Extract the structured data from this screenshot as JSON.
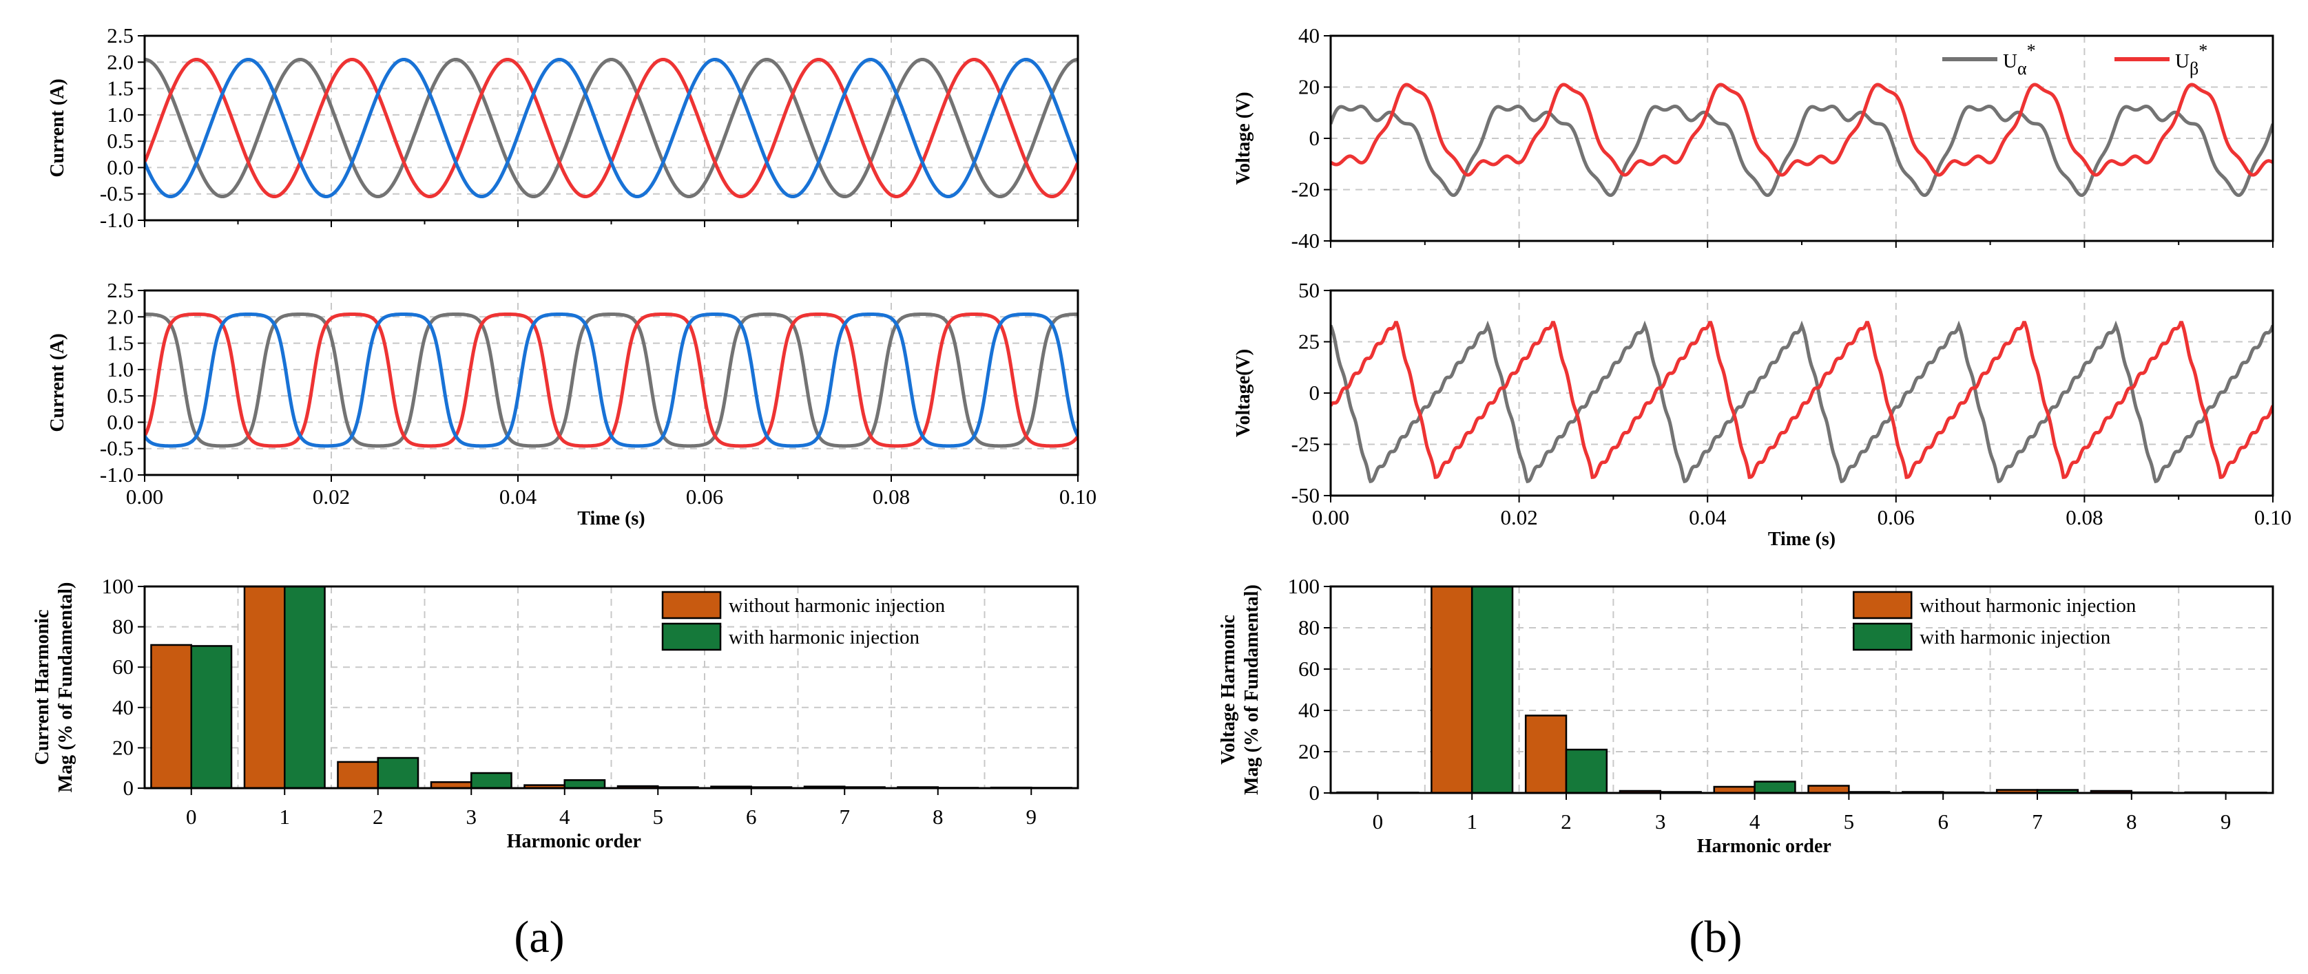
{
  "figure": {
    "panel_a_label": "(a)",
    "panel_b_label": "(b)"
  },
  "chart_data": [
    {
      "id": "a1",
      "type": "line",
      "title": "",
      "xlabel": "",
      "ylabel": "Current (A)",
      "xlim": [
        0,
        0.1
      ],
      "ylim": [
        -1.0,
        2.5
      ],
      "xticks": [
        0,
        0.02,
        0.04,
        0.06,
        0.08,
        0.1
      ],
      "xtick_labels": [
        "",
        "",
        "",
        "",
        "",
        ""
      ],
      "yticks": [
        -1.0,
        -0.5,
        0.0,
        0.5,
        1.0,
        1.5,
        2.0,
        2.5
      ],
      "ytick_labels": [
        "-1.0",
        "-0.5",
        "0.0",
        "0.5",
        "1.0",
        "1.5",
        "2.0",
        "2.5"
      ],
      "grid": true,
      "series": [
        {
          "name": "phase-gray",
          "color": "#737373",
          "model": "sine",
          "offset": 0.75,
          "amplitude": 1.3,
          "freq_hz": 60,
          "phase_deg": 0
        },
        {
          "name": "phase-red",
          "color": "#ee3333",
          "model": "sine",
          "offset": 0.75,
          "amplitude": 1.3,
          "freq_hz": 60,
          "phase_deg": 120
        },
        {
          "name": "phase-blue",
          "color": "#1872d6",
          "model": "sine",
          "offset": 0.75,
          "amplitude": 1.3,
          "freq_hz": 60,
          "phase_deg": 240
        }
      ]
    },
    {
      "id": "a2",
      "type": "line",
      "title": "",
      "xlabel": "Time (s)",
      "ylabel": "Current (A)",
      "xlim": [
        0,
        0.1
      ],
      "ylim": [
        -1.0,
        2.5
      ],
      "xticks": [
        0,
        0.02,
        0.04,
        0.06,
        0.08,
        0.1
      ],
      "xtick_labels": [
        "0.00",
        "0.02",
        "0.04",
        "0.06",
        "0.08",
        "0.10"
      ],
      "yticks": [
        -1.0,
        -0.5,
        0.0,
        0.5,
        1.0,
        1.5,
        2.0,
        2.5
      ],
      "ytick_labels": [
        "-1.0",
        "-0.5",
        "0.0",
        "0.5",
        "1.0",
        "1.5",
        "2.0",
        "2.5"
      ],
      "grid": true,
      "series": [
        {
          "name": "phase-gray",
          "color": "#737373",
          "model": "flat_top",
          "offset": 0.8,
          "amplitude": 1.25,
          "freq_hz": 60,
          "phase_deg": 0
        },
        {
          "name": "phase-red",
          "color": "#ee3333",
          "model": "flat_top",
          "offset": 0.8,
          "amplitude": 1.25,
          "freq_hz": 60,
          "phase_deg": 120
        },
        {
          "name": "phase-blue",
          "color": "#1872d6",
          "model": "flat_top",
          "offset": 0.8,
          "amplitude": 1.25,
          "freq_hz": 60,
          "phase_deg": 240
        }
      ]
    },
    {
      "id": "a3",
      "type": "bar",
      "title": "",
      "xlabel": "Harmonic order",
      "ylabel": "Current Harmonic Mag (% of Fundamental)",
      "ylabel_lines": [
        "Current Harmonic",
        "Mag (% of Fundamental)"
      ],
      "categories": [
        "0",
        "1",
        "2",
        "3",
        "4",
        "5",
        "6",
        "7",
        "8",
        "9"
      ],
      "ylim": [
        0,
        100
      ],
      "yticks": [
        0,
        20,
        40,
        60,
        80,
        100
      ],
      "ytick_labels": [
        "0",
        "20",
        "40",
        "60",
        "80",
        "100"
      ],
      "grid": true,
      "legend": "top-right",
      "series": [
        {
          "name": "without harmonic injection",
          "color": "#c85a10",
          "values": [
            71,
            100,
            13,
            3,
            1.5,
            1,
            0.8,
            0.8,
            0.5,
            0.3
          ]
        },
        {
          "name": "with harmonic injection",
          "color": "#15793a",
          "values": [
            70.5,
            100,
            15,
            7.5,
            4,
            0.5,
            0.5,
            0.5,
            0.2,
            0.2
          ]
        }
      ]
    },
    {
      "id": "b1",
      "type": "line",
      "title": "",
      "xlabel": "",
      "ylabel": "Voltage (V)",
      "xlim": [
        0,
        0.1
      ],
      "ylim": [
        -40,
        40
      ],
      "xticks": [
        0,
        0.02,
        0.04,
        0.06,
        0.08,
        0.1
      ],
      "xtick_labels": [
        "",
        "",
        "",
        "",
        "",
        ""
      ],
      "yticks": [
        -40,
        -20,
        0,
        20,
        40
      ],
      "ytick_labels": [
        "-40",
        "-20",
        "0",
        "20",
        "40"
      ],
      "grid": true,
      "legend": "top-right",
      "legend_entries": [
        {
          "base": "U",
          "sub": "α",
          "sup": "*",
          "color": "#737373"
        },
        {
          "base": "U",
          "sub": "β",
          "sup": "*",
          "color": "#ee3333"
        }
      ],
      "series": [
        {
          "name": "U-alpha",
          "color": "#737373",
          "model": "harmonic",
          "freq_hz": 60,
          "phase_deg": 0,
          "h1": 15,
          "h2": 6,
          "h2_phase_deg": 70
        },
        {
          "name": "U-beta",
          "color": "#ee3333",
          "model": "harmonic",
          "freq_hz": 60,
          "phase_deg": 90,
          "h1": 15,
          "h2": 6,
          "h2_phase_deg": 250
        }
      ]
    },
    {
      "id": "b2",
      "type": "line",
      "title": "",
      "xlabel": "Time (s)",
      "ylabel": "Voltage(V)",
      "xlim": [
        0,
        0.1
      ],
      "ylim": [
        -50,
        50
      ],
      "xticks": [
        0,
        0.02,
        0.04,
        0.06,
        0.08,
        0.1
      ],
      "xtick_labels": [
        "0.00",
        "0.02",
        "0.04",
        "0.06",
        "0.08",
        "0.10"
      ],
      "yticks": [
        -50,
        -25,
        0,
        25,
        50
      ],
      "ytick_labels": [
        "-50",
        "-25",
        "0",
        "25",
        "50"
      ],
      "grid": true,
      "series": [
        {
          "name": "U-alpha",
          "color": "#737373",
          "model": "sawtooth",
          "freq_hz": 60,
          "phase_deg": 0,
          "min": -43,
          "max": 33
        },
        {
          "name": "U-beta",
          "color": "#ee3333",
          "model": "sawtooth",
          "freq_hz": 60,
          "phase_deg": 150,
          "min": -41,
          "max": 35
        }
      ]
    },
    {
      "id": "b3",
      "type": "bar",
      "title": "",
      "xlabel": "Harmonic order",
      "ylabel": "Voltage Harmonic Mag (% of Fundamental)",
      "ylabel_lines": [
        "Voltage Harmonic",
        "Mag (% of Fundamental)"
      ],
      "categories": [
        "0",
        "1",
        "2",
        "3",
        "4",
        "5",
        "6",
        "7",
        "8",
        "9"
      ],
      "ylim": [
        0,
        100
      ],
      "yticks": [
        0,
        20,
        40,
        60,
        80,
        100
      ],
      "ytick_labels": [
        "0",
        "20",
        "40",
        "60",
        "80",
        "100"
      ],
      "grid": true,
      "legend": "top-right",
      "series": [
        {
          "name": "without harmonic injection",
          "color": "#c85a10",
          "values": [
            0.3,
            100,
            37.5,
            1,
            3,
            3.5,
            0.5,
            1.5,
            1,
            0.3
          ]
        },
        {
          "name": "with harmonic injection",
          "color": "#15793a",
          "values": [
            0.2,
            100,
            21,
            0.5,
            5.5,
            0.5,
            0.3,
            1.5,
            0.3,
            0.2
          ]
        }
      ]
    }
  ]
}
